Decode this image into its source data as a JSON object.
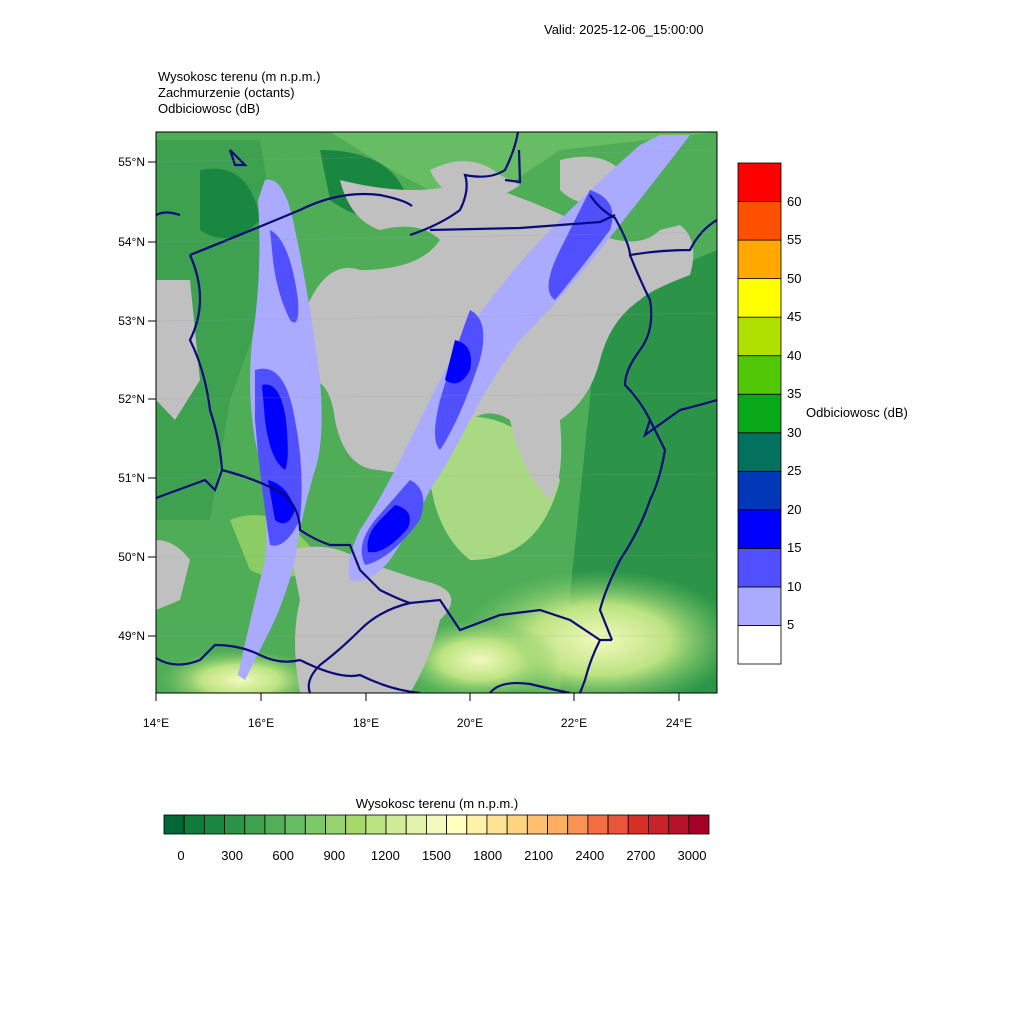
{
  "header": {
    "valid": "Valid: 2025-12-06_15:00:00",
    "title_lines": [
      "Wysokosc terenu   (m n.p.m.)",
      "Zachmurzenie   (octants)",
      "Odbiciowosc   (dB)"
    ]
  },
  "map": {
    "lat_labels": [
      "55°N",
      "54°N",
      "53°N",
      "52°N",
      "51°N",
      "50°N",
      "49°N"
    ],
    "lon_labels": [
      "14°E",
      "16°E",
      "18°E",
      "20°E",
      "22°E",
      "24°E"
    ],
    "lat_range": [
      48.3,
      55.4
    ],
    "lon_range": [
      14.0,
      24.7
    ],
    "boundary_color": "#0b0b7a",
    "cloud_color": "#c0c0c0"
  },
  "reflectivity_legend": {
    "title": "Odbiciowosc  (dB)",
    "levels": [
      "5",
      "10",
      "15",
      "20",
      "25",
      "30",
      "35",
      "40",
      "45",
      "50",
      "55",
      "60"
    ],
    "colors": [
      "#ffffff",
      "#aaaaff",
      "#5050ff",
      "#0000ff",
      "#0038b8",
      "#04705e",
      "#08a818",
      "#50c808",
      "#b0e000",
      "#ffff00",
      "#ffa800",
      "#ff5000",
      "#ff0000"
    ]
  },
  "terrain_legend": {
    "title": "Wysokosc terenu  (m n.p.m.)",
    "labels": [
      "0",
      "300",
      "600",
      "900",
      "1200",
      "1500",
      "1800",
      "2100",
      "2400",
      "2700",
      "3000"
    ],
    "colors": [
      "#006837",
      "#0f7b3c",
      "#1a8741",
      "#2b9448",
      "#3da150",
      "#52ae57",
      "#66bd63",
      "#7dc868",
      "#94d36e",
      "#a6d96a",
      "#bce381",
      "#d0ec96",
      "#e2f3ab",
      "#f2fabd",
      "#ffffbf",
      "#fff1a8",
      "#fee392",
      "#fed47f",
      "#fdc070",
      "#fdae61",
      "#f99355",
      "#f46d43",
      "#e8553a",
      "#d73027",
      "#c7232a",
      "#b5132c",
      "#a50026"
    ]
  }
}
